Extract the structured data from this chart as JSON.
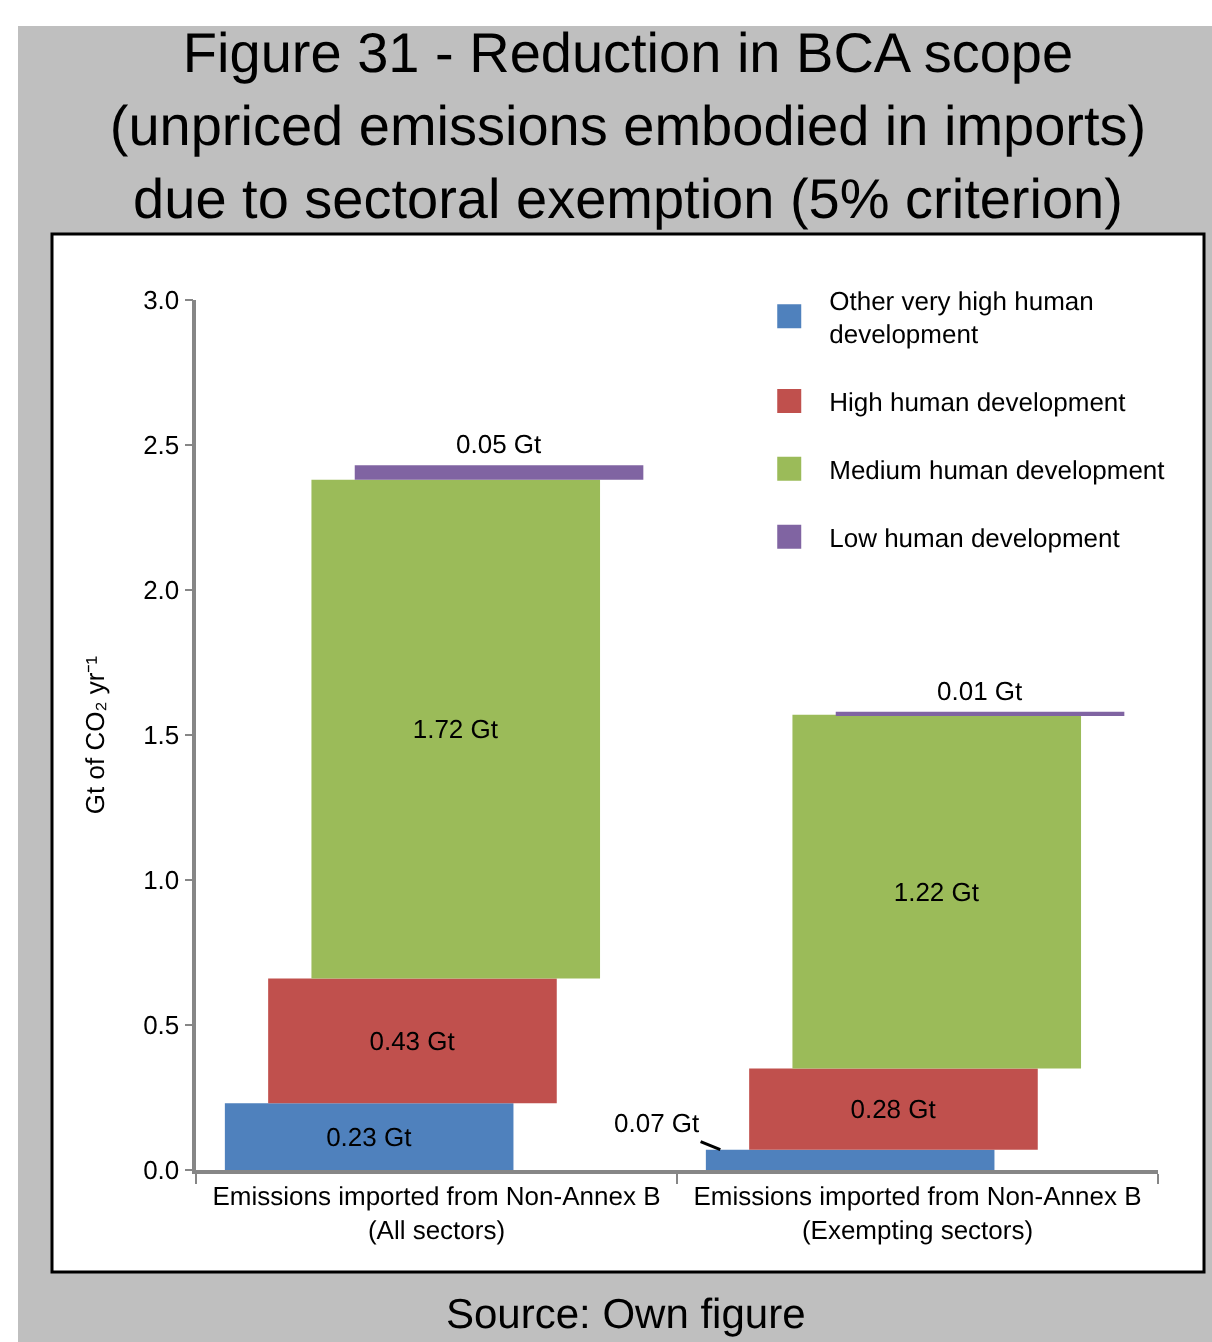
{
  "chart_data": {
    "type": "bar",
    "title": "Figure 31 - Reduction in BCA scope (unpriced emissions embodied in imports) due to sectoral exemption (5% criterion)",
    "ylabel": "Gt of CO₂ yr⁻¹",
    "annotations": [
      "Source: Own figure"
    ],
    "categories": [
      "Emissions imported from Non-Annex B (All sectors)",
      "Emissions imported from Non-Annex B (Exempting sectors)"
    ],
    "series": [
      {
        "name": "Other very high human development",
        "color": "#4f81bd",
        "values": [
          0.23,
          0.07
        ],
        "value_labels": [
          "0.23 Gt",
          "0.07 Gt"
        ]
      },
      {
        "name": "High human development",
        "color": "#c0504d",
        "values": [
          0.43,
          0.28
        ],
        "value_labels": [
          "0.43 Gt",
          "0.28 Gt"
        ]
      },
      {
        "name": "Medium human development",
        "color": "#9bbb59",
        "values": [
          1.72,
          1.22
        ],
        "value_labels": [
          "1.72 Gt",
          "1.22 Gt"
        ]
      },
      {
        "name": "Low human development",
        "color": "#8064a2",
        "values": [
          0.05,
          0.01
        ],
        "value_labels": [
          "0.05 Gt",
          "0.01 Gt"
        ]
      }
    ],
    "stacked": true,
    "ylim": [
      0,
      3
    ],
    "yticks": [
      {
        "value": 0,
        "label": "0.0"
      },
      0.5,
      {
        "value": 1,
        "label": "1.0"
      },
      1.5,
      {
        "value": 2,
        "label": "2.0"
      },
      2.5,
      {
        "value": 3,
        "label": "3.0"
      }
    ],
    "legend": "top right"
  }
}
